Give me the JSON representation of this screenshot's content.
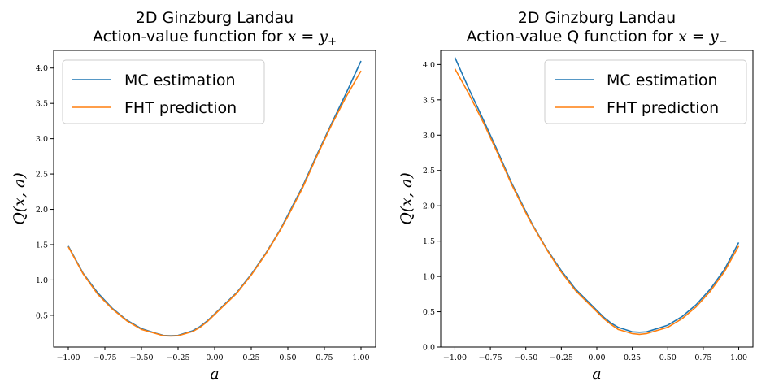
{
  "colors": {
    "mc": "#1f77b4",
    "fht": "#ff7f0e"
  },
  "chart_data": [
    {
      "type": "line",
      "title": [
        "2D Ginzburg Landau",
        "Action-value function for"
      ],
      "title_math": {
        "var": "x",
        "sub": "+"
      },
      "xlabel": "a",
      "ylabel": "Q(x, a)",
      "xlim": [
        -1.1,
        1.1
      ],
      "ylim": [
        0.05,
        4.25
      ],
      "xticks": [
        -1.0,
        -0.75,
        -0.5,
        -0.25,
        0.0,
        0.25,
        0.5,
        0.75,
        1.0
      ],
      "xtick_labels": [
        "−1.00",
        "−0.75",
        "−0.50",
        "−0.25",
        "0.00",
        "0.25",
        "0.50",
        "0.75",
        "1.00"
      ],
      "yticks": [
        0.5,
        1.0,
        1.5,
        2.0,
        2.5,
        3.0,
        3.5,
        4.0
      ],
      "ytick_labels": [
        "0.5",
        "1.0",
        "1.5",
        "2.0",
        "2.5",
        "3.0",
        "3.5",
        "4.0"
      ],
      "legend_position": "upper-left",
      "x": [
        -1.0,
        -0.9,
        -0.8,
        -0.7,
        -0.6,
        -0.5,
        -0.4,
        -0.35,
        -0.3,
        -0.25,
        -0.15,
        -0.1,
        -0.05,
        0.0,
        0.05,
        0.15,
        0.25,
        0.35,
        0.45,
        0.5,
        0.6,
        0.7,
        0.8,
        0.9,
        1.0
      ],
      "series": [
        {
          "name": "MC estimation",
          "values": [
            1.48,
            1.1,
            0.82,
            0.6,
            0.43,
            0.31,
            0.245,
            0.215,
            0.21,
            0.215,
            0.28,
            0.34,
            0.42,
            0.52,
            0.62,
            0.82,
            1.08,
            1.38,
            1.72,
            1.92,
            2.32,
            2.78,
            3.22,
            3.65,
            4.1
          ]
        },
        {
          "name": "FHT prediction",
          "values": [
            1.47,
            1.09,
            0.8,
            0.59,
            0.42,
            0.3,
            0.24,
            0.21,
            0.205,
            0.21,
            0.27,
            0.33,
            0.41,
            0.51,
            0.61,
            0.81,
            1.07,
            1.37,
            1.71,
            1.9,
            2.3,
            2.76,
            3.2,
            3.6,
            3.96
          ]
        }
      ]
    },
    {
      "type": "line",
      "title": [
        "2D Ginzburg Landau",
        "Action-value Q function for"
      ],
      "title_math": {
        "var": "x",
        "sub": "−"
      },
      "xlabel": "a",
      "ylabel": "Q(x, a)",
      "xlim": [
        -1.1,
        1.1
      ],
      "ylim": [
        0.0,
        4.2
      ],
      "xticks": [
        -1.0,
        -0.75,
        -0.5,
        -0.25,
        0.0,
        0.25,
        0.5,
        0.75,
        1.0
      ],
      "xtick_labels": [
        "−1.00",
        "−0.75",
        "−0.50",
        "−0.25",
        "0.00",
        "0.25",
        "0.50",
        "0.75",
        "1.00"
      ],
      "yticks": [
        0.0,
        0.5,
        1.0,
        1.5,
        2.0,
        2.5,
        3.0,
        3.5,
        4.0
      ],
      "ytick_labels": [
        "0.0",
        "0.5",
        "1.0",
        "1.5",
        "2.0",
        "2.5",
        "3.0",
        "3.5",
        "4.0"
      ],
      "legend_position": "upper-right",
      "x": [
        -1.0,
        -0.9,
        -0.8,
        -0.7,
        -0.6,
        -0.5,
        -0.45,
        -0.35,
        -0.25,
        -0.15,
        -0.05,
        0.0,
        0.05,
        0.1,
        0.15,
        0.25,
        0.3,
        0.35,
        0.4,
        0.5,
        0.6,
        0.7,
        0.8,
        0.9,
        1.0
      ],
      "series": [
        {
          "name": "MC estimation",
          "values": [
            4.1,
            3.65,
            3.22,
            2.78,
            2.32,
            1.92,
            1.72,
            1.38,
            1.08,
            0.82,
            0.62,
            0.52,
            0.42,
            0.34,
            0.28,
            0.215,
            0.21,
            0.215,
            0.245,
            0.31,
            0.43,
            0.6,
            0.82,
            1.1,
            1.48
          ]
        },
        {
          "name": "FHT prediction",
          "values": [
            3.94,
            3.58,
            3.18,
            2.75,
            2.3,
            1.9,
            1.71,
            1.37,
            1.06,
            0.8,
            0.6,
            0.5,
            0.4,
            0.32,
            0.25,
            0.19,
            0.18,
            0.19,
            0.22,
            0.28,
            0.4,
            0.57,
            0.79,
            1.07,
            1.43
          ]
        }
      ]
    }
  ]
}
